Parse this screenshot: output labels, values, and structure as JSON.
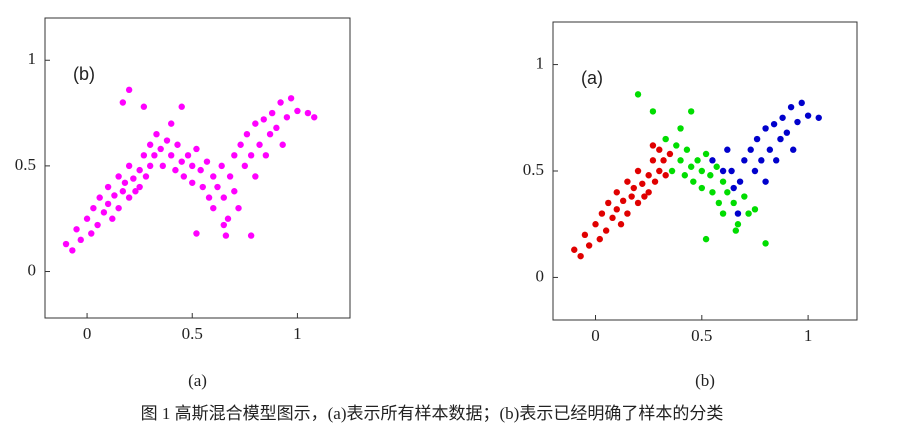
{
  "chart_data": [
    {
      "type": "scatter",
      "annotation": "(b)",
      "caption": "(a)",
      "xlim": [
        -0.2,
        1.25
      ],
      "ylim": [
        -0.22,
        1.2
      ],
      "xticks": [
        0,
        0.5,
        1
      ],
      "yticks": [
        0,
        0.5,
        1
      ],
      "grid": false,
      "series": [
        {
          "color": "#ff00ff",
          "x": [
            -0.1,
            -0.07,
            -0.05,
            -0.03,
            0,
            0.02,
            0.03,
            0.05,
            0.06,
            0.08,
            0.1,
            0.1,
            0.12,
            0.13,
            0.15,
            0.15,
            0.17,
            0.18,
            0.2,
            0.2,
            0.22,
            0.23,
            0.25,
            0.25,
            0.27,
            0.28,
            0.3,
            0.3,
            0.32,
            0.33,
            0.35,
            0.36,
            0.38,
            0.4,
            0.4,
            0.42,
            0.43,
            0.45,
            0.46,
            0.48,
            0.5,
            0.5,
            0.52,
            0.54,
            0.55,
            0.57,
            0.58,
            0.6,
            0.6,
            0.62,
            0.64,
            0.65,
            0.67,
            0.68,
            0.7,
            0.7,
            0.72,
            0.73,
            0.75,
            0.76,
            0.78,
            0.8,
            0.8,
            0.82,
            0.84,
            0.85,
            0.87,
            0.88,
            0.9,
            0.92,
            0.93,
            0.95,
            0.97,
            1,
            1.05,
            1.08,
            0.17,
            0.2,
            0.27,
            0.45,
            0.52,
            0.65,
            0.66,
            0.78
          ],
          "y": [
            0.13,
            0.1,
            0.2,
            0.15,
            0.25,
            0.18,
            0.3,
            0.22,
            0.35,
            0.28,
            0.32,
            0.4,
            0.25,
            0.36,
            0.3,
            0.45,
            0.38,
            0.42,
            0.35,
            0.5,
            0.44,
            0.38,
            0.48,
            0.4,
            0.55,
            0.45,
            0.5,
            0.6,
            0.55,
            0.65,
            0.58,
            0.5,
            0.62,
            0.55,
            0.7,
            0.48,
            0.6,
            0.52,
            0.45,
            0.55,
            0.5,
            0.42,
            0.58,
            0.48,
            0.4,
            0.52,
            0.35,
            0.45,
            0.3,
            0.4,
            0.5,
            0.35,
            0.25,
            0.45,
            0.55,
            0.38,
            0.3,
            0.6,
            0.5,
            0.65,
            0.55,
            0.7,
            0.45,
            0.6,
            0.72,
            0.55,
            0.65,
            0.75,
            0.68,
            0.8,
            0.6,
            0.73,
            0.82,
            0.76,
            0.75,
            0.73,
            0.8,
            0.86,
            0.78,
            0.78,
            0.18,
            0.22,
            0.17,
            0.17
          ]
        }
      ]
    },
    {
      "type": "scatter",
      "annotation": "(a)",
      "caption": "(b)",
      "xlim": [
        -0.2,
        1.23
      ],
      "ylim": [
        -0.2,
        1.2
      ],
      "xticks": [
        0,
        0.5,
        1
      ],
      "yticks": [
        0,
        0.5,
        1
      ],
      "grid": false,
      "series": [
        {
          "color": "#e00000",
          "x": [
            -0.1,
            -0.07,
            -0.05,
            -0.03,
            0,
            0.02,
            0.03,
            0.05,
            0.06,
            0.08,
            0.1,
            0.1,
            0.12,
            0.13,
            0.15,
            0.15,
            0.17,
            0.18,
            0.2,
            0.2,
            0.22,
            0.23,
            0.25,
            0.25,
            0.27,
            0.28,
            0.3,
            0.3,
            0.32,
            0.35,
            0.27,
            0.33
          ],
          "y": [
            0.13,
            0.1,
            0.2,
            0.15,
            0.25,
            0.18,
            0.3,
            0.22,
            0.35,
            0.28,
            0.32,
            0.4,
            0.25,
            0.36,
            0.3,
            0.45,
            0.38,
            0.42,
            0.35,
            0.5,
            0.44,
            0.38,
            0.48,
            0.4,
            0.55,
            0.45,
            0.5,
            0.6,
            0.55,
            0.58,
            0.62,
            0.48
          ]
        },
        {
          "color": "#00dd00",
          "x": [
            0.33,
            0.36,
            0.38,
            0.4,
            0.4,
            0.42,
            0.43,
            0.45,
            0.46,
            0.48,
            0.5,
            0.5,
            0.52,
            0.54,
            0.55,
            0.57,
            0.58,
            0.6,
            0.6,
            0.62,
            0.65,
            0.67,
            0.7,
            0.72,
            0.75,
            0.8,
            0.2,
            0.27,
            0.45,
            0.52,
            0.66
          ],
          "y": [
            0.65,
            0.5,
            0.62,
            0.55,
            0.7,
            0.48,
            0.6,
            0.52,
            0.45,
            0.55,
            0.5,
            0.42,
            0.58,
            0.48,
            0.4,
            0.52,
            0.35,
            0.45,
            0.3,
            0.4,
            0.35,
            0.25,
            0.38,
            0.3,
            0.32,
            0.16,
            0.86,
            0.78,
            0.78,
            0.18,
            0.22
          ]
        },
        {
          "color": "#0000cc",
          "x": [
            0.55,
            0.6,
            0.62,
            0.64,
            0.65,
            0.68,
            0.7,
            0.73,
            0.75,
            0.76,
            0.78,
            0.8,
            0.8,
            0.82,
            0.84,
            0.85,
            0.87,
            0.88,
            0.9,
            0.92,
            0.93,
            0.95,
            0.97,
            1,
            1.05,
            0.67
          ],
          "y": [
            0.55,
            0.5,
            0.6,
            0.5,
            0.42,
            0.45,
            0.55,
            0.6,
            0.5,
            0.65,
            0.55,
            0.7,
            0.45,
            0.6,
            0.72,
            0.55,
            0.65,
            0.75,
            0.68,
            0.8,
            0.6,
            0.73,
            0.82,
            0.76,
            0.75,
            0.3
          ]
        }
      ]
    }
  ],
  "figure_caption": "图 1  高斯混合模型图示，(a)表示所有样本数据；(b)表示已经明确了样本的分类"
}
